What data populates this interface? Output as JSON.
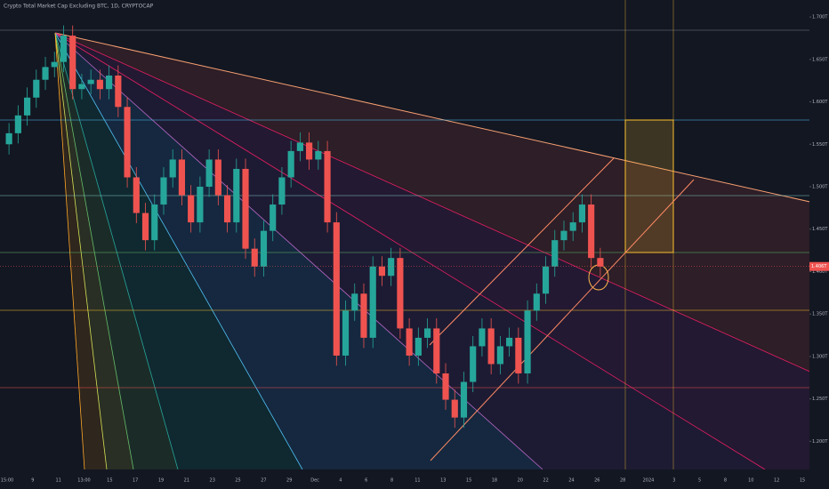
{
  "chart_data": {
    "type": "candlestick",
    "title": "Crypto Total Market Cap Excluding BTC, 1D, CRYPTOCAP",
    "ylim": [
      1.17,
      1.72
    ],
    "yticks": [
      {
        "value": 1.2,
        "label": "1.200T"
      },
      {
        "value": 1.25,
        "label": "1.250T"
      },
      {
        "value": 1.3,
        "label": "1.300T"
      },
      {
        "value": 1.35,
        "label": "1.350T"
      },
      {
        "value": 1.4,
        "label": "1.400T"
      },
      {
        "value": 1.45,
        "label": "1.450T"
      },
      {
        "value": 1.5,
        "label": "1.500T"
      },
      {
        "value": 1.55,
        "label": "1.550T"
      },
      {
        "value": 1.6,
        "label": "1.600T"
      },
      {
        "value": 1.65,
        "label": "1.650T"
      },
      {
        "value": 1.7,
        "label": "1.700T"
      }
    ],
    "x_axis_labels": [
      "15:00",
      "9",
      "11",
      "13:00",
      "15",
      "17",
      "19",
      "21",
      "23",
      "25",
      "27",
      "29",
      "Dec",
      "4",
      "6",
      "8",
      "11",
      "13",
      "15",
      "18",
      "20",
      "22",
      "24",
      "26",
      "28",
      "2024",
      "3",
      "5",
      "8",
      "10",
      "12",
      "15"
    ],
    "up_color": "#26a69a",
    "down_color": "#ef5350",
    "last_value_label": "1.406T",
    "open": [
      1.55,
      1.563,
      1.584,
      1.605,
      1.626,
      1.641,
      1.647,
      1.678,
      1.615,
      1.621,
      1.626,
      1.615,
      1.631,
      1.594,
      1.511,
      1.469,
      1.437,
      1.479,
      1.511,
      1.532,
      1.49,
      1.458,
      1.5,
      1.532,
      1.49,
      1.458,
      1.521,
      1.427,
      1.406,
      1.448,
      1.479,
      1.511,
      1.542,
      1.552,
      1.532,
      1.542,
      1.458,
      1.301,
      1.354,
      1.374,
      1.322,
      1.406,
      1.395,
      1.416,
      1.333,
      1.301,
      1.322,
      1.333,
      1.28,
      1.249,
      1.228,
      1.27,
      1.312,
      1.333,
      1.291,
      1.312,
      1.322,
      1.28,
      1.354,
      1.374,
      1.406,
      1.437,
      1.448,
      1.458,
      1.479,
      1.416
    ],
    "high": [
      1.575,
      1.596,
      1.617,
      1.638,
      1.653,
      1.659,
      1.69,
      1.69,
      1.633,
      1.638,
      1.638,
      1.643,
      1.643,
      1.606,
      1.523,
      1.481,
      1.491,
      1.523,
      1.544,
      1.544,
      1.502,
      1.512,
      1.544,
      1.544,
      1.502,
      1.533,
      1.533,
      1.439,
      1.46,
      1.491,
      1.523,
      1.554,
      1.564,
      1.564,
      1.554,
      1.554,
      1.47,
      1.366,
      1.386,
      1.386,
      1.418,
      1.418,
      1.428,
      1.428,
      1.345,
      1.334,
      1.345,
      1.345,
      1.292,
      1.261,
      1.282,
      1.324,
      1.345,
      1.345,
      1.324,
      1.334,
      1.334,
      1.366,
      1.386,
      1.418,
      1.449,
      1.46,
      1.47,
      1.491,
      1.491,
      1.428
    ],
    "low": [
      1.538,
      1.551,
      1.572,
      1.593,
      1.614,
      1.629,
      1.635,
      1.603,
      1.603,
      1.609,
      1.603,
      1.603,
      1.582,
      1.499,
      1.457,
      1.425,
      1.425,
      1.467,
      1.499,
      1.478,
      1.446,
      1.446,
      1.488,
      1.478,
      1.446,
      1.446,
      1.415,
      1.394,
      1.394,
      1.436,
      1.467,
      1.499,
      1.53,
      1.52,
      1.52,
      1.446,
      1.289,
      1.289,
      1.342,
      1.31,
      1.31,
      1.383,
      1.383,
      1.321,
      1.289,
      1.289,
      1.31,
      1.268,
      1.237,
      1.216,
      1.216,
      1.258,
      1.3,
      1.279,
      1.279,
      1.3,
      1.268,
      1.268,
      1.342,
      1.362,
      1.394,
      1.425,
      1.436,
      1.446,
      1.404,
      1.394
    ],
    "close": [
      1.563,
      1.584,
      1.605,
      1.626,
      1.641,
      1.647,
      1.678,
      1.615,
      1.621,
      1.626,
      1.615,
      1.631,
      1.594,
      1.511,
      1.469,
      1.437,
      1.479,
      1.511,
      1.532,
      1.49,
      1.458,
      1.5,
      1.532,
      1.49,
      1.458,
      1.521,
      1.427,
      1.406,
      1.448,
      1.479,
      1.511,
      1.542,
      1.552,
      1.532,
      1.542,
      1.458,
      1.301,
      1.354,
      1.374,
      1.322,
      1.406,
      1.395,
      1.416,
      1.333,
      1.301,
      1.322,
      1.333,
      1.28,
      1.249,
      1.228,
      1.27,
      1.312,
      1.333,
      1.291,
      1.312,
      1.322,
      1.28,
      1.354,
      1.374,
      1.406,
      1.437,
      1.448,
      1.458,
      1.479,
      1.416,
      1.406
    ]
  }
}
